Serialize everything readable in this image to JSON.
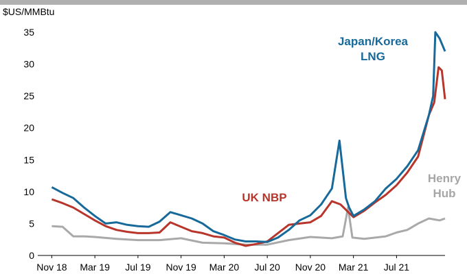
{
  "chart_data": {
    "type": "line",
    "ylabel": "$US/MMBtu",
    "xlim": [
      -1.3,
      36.5
    ],
    "ylim": [
      0,
      35
    ],
    "yticks": [
      0,
      5,
      10,
      15,
      20,
      25,
      30,
      35
    ],
    "xticks": [
      {
        "value": 0,
        "label": "Nov 18"
      },
      {
        "value": 4,
        "label": "Mar 19"
      },
      {
        "value": 8,
        "label": "Jul 19"
      },
      {
        "value": 12,
        "label": "Nov 19"
      },
      {
        "value": 16,
        "label": "Mar 20"
      },
      {
        "value": 20,
        "label": "Jul 20"
      },
      {
        "value": 24,
        "label": "Nov 20"
      },
      {
        "value": 28,
        "label": "Mar 21"
      },
      {
        "value": 32,
        "label": "Jul 21"
      }
    ],
    "series": [
      {
        "name": "Henry Hub",
        "color": "#a9a9a9",
        "x": [
          0,
          1,
          2,
          3,
          4,
          6,
          8,
          10,
          12,
          14,
          16,
          18,
          20,
          22,
          24,
          26,
          27,
          27.5,
          27.9,
          29,
          31,
          32,
          33,
          34,
          35,
          36,
          36.5
        ],
        "values": [
          4.6,
          4.5,
          3.0,
          3.0,
          2.9,
          2.6,
          2.4,
          2.4,
          2.7,
          2.0,
          1.9,
          1.7,
          1.7,
          2.4,
          2.9,
          2.7,
          3.0,
          7.5,
          2.8,
          2.6,
          3.0,
          3.6,
          4.0,
          5.0,
          5.8,
          5.5,
          5.8
        ]
      },
      {
        "name": "UK NBP",
        "color": "#b8352b",
        "x": [
          0,
          1,
          2,
          3,
          4,
          5,
          6,
          7,
          8,
          9,
          10,
          11,
          12,
          13,
          14,
          15,
          16,
          17,
          18,
          19,
          20,
          21,
          22,
          23,
          24,
          25,
          26,
          26.8,
          27.4,
          28,
          29,
          30,
          31,
          32,
          33,
          34,
          35,
          35.5,
          35.9,
          36.2,
          36.5
        ],
        "values": [
          8.8,
          8.2,
          7.5,
          6.5,
          5.5,
          4.6,
          4.0,
          3.7,
          3.5,
          3.5,
          3.6,
          5.2,
          4.5,
          3.8,
          3.5,
          3.0,
          2.8,
          2.0,
          1.5,
          1.8,
          2.2,
          3.5,
          4.8,
          5.0,
          5.2,
          6.2,
          8.5,
          8.0,
          7.0,
          6.0,
          7.0,
          8.3,
          9.5,
          11.0,
          13.0,
          15.5,
          22,
          24,
          29.5,
          29,
          24.5
        ]
      },
      {
        "name": "Japan/Korea LNG",
        "color": "#17699a",
        "x": [
          0,
          1,
          2,
          3,
          4,
          5,
          6,
          7,
          8,
          9,
          10,
          11,
          12,
          13,
          14,
          15,
          16,
          17,
          18,
          19,
          20,
          21,
          22,
          23,
          24,
          25,
          26,
          26.7,
          27.3,
          27.6,
          28,
          29,
          30,
          31,
          32,
          33,
          34,
          35,
          35.4,
          35.6,
          36,
          36.5
        ],
        "values": [
          10.7,
          9.8,
          9.0,
          7.5,
          6.2,
          5.0,
          5.2,
          4.8,
          4.6,
          4.5,
          5.3,
          6.8,
          6.3,
          5.8,
          5.0,
          3.8,
          3.2,
          2.5,
          2.2,
          2.2,
          2.1,
          2.8,
          4.0,
          5.5,
          6.3,
          8.0,
          10.5,
          18.0,
          9.0,
          7.5,
          6.2,
          7.2,
          8.5,
          10.5,
          12.0,
          14.0,
          16.5,
          22,
          25,
          35,
          34,
          32
        ]
      }
    ]
  }
}
